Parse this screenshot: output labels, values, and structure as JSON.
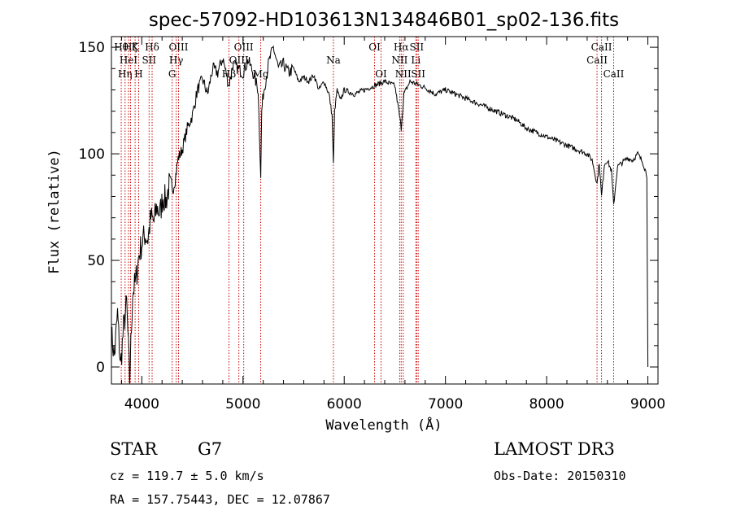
{
  "chart_data": {
    "type": "line",
    "title": "spec-57092-HD103613N134846B01_sp02-136.fits",
    "xlabel": "Wavelength (Å)",
    "ylabel": "Flux (relative)",
    "xlim": [
      3700,
      9100
    ],
    "ylim": [
      -8,
      155
    ],
    "x_ticks": [
      4000,
      5000,
      6000,
      7000,
      8000,
      9000
    ],
    "y_ticks": [
      0,
      50,
      100,
      150
    ],
    "grid": false,
    "series": [
      {
        "x": [
          3700,
          3730,
          3760,
          3790,
          3820,
          3850,
          3880,
          3910,
          3940,
          3970,
          4000,
          4030,
          4060,
          4090,
          4120,
          4150,
          4180,
          4210,
          4240,
          4270,
          4300,
          4330,
          4360,
          4400,
          4450,
          4500,
          4550,
          4600,
          4650,
          4700,
          4750,
          4800,
          4860,
          4900,
          4950,
          5000,
          5050,
          5100,
          5150,
          5175,
          5185,
          5200,
          5250,
          5300,
          5350,
          5400,
          5450,
          5500,
          5550,
          5600,
          5650,
          5700,
          5750,
          5800,
          5850,
          5880,
          5893,
          5905,
          5930,
          5960,
          6000,
          6100,
          6200,
          6300,
          6400,
          6500,
          6540,
          6563,
          6590,
          6650,
          6700,
          6800,
          6900,
          7000,
          7100,
          7200,
          7300,
          7400,
          7500,
          7600,
          7700,
          7800,
          7900,
          8000,
          8100,
          8200,
          8300,
          8400,
          8450,
          8498,
          8520,
          8542,
          8570,
          8600,
          8640,
          8662,
          8700,
          8750,
          8800,
          8850,
          8900,
          8950,
          8990,
          9000
        ],
        "y": [
          15,
          5,
          25,
          0,
          18,
          30,
          -6,
          35,
          40,
          52,
          58,
          62,
          60,
          70,
          68,
          75,
          72,
          80,
          78,
          85,
          82,
          88,
          98,
          102,
          112,
          118,
          130,
          135,
          128,
          140,
          138,
          145,
          132,
          142,
          140,
          138,
          144,
          138,
          130,
          90,
          120,
          128,
          142,
          150,
          140,
          142,
          138,
          140,
          134,
          136,
          134,
          137,
          130,
          134,
          128,
          118,
          95,
          120,
          130,
          125,
          130,
          128,
          130,
          132,
          134,
          132,
          120,
          112,
          128,
          134,
          133,
          131,
          128,
          130,
          128,
          126,
          124,
          122,
          120,
          118,
          116,
          112,
          110,
          108,
          106,
          104,
          102,
          100,
          97,
          86,
          96,
          80,
          95,
          97,
          92,
          76,
          94,
          96,
          98,
          97,
          100,
          96,
          90,
          0
        ]
      }
    ],
    "line_markers": [
      {
        "wavelength": 3797,
        "label": "Hθ",
        "row": 1
      },
      {
        "wavelength": 3835,
        "label": "Hη",
        "row": 3
      },
      {
        "wavelength": 3869,
        "label": "HeI",
        "row": 2
      },
      {
        "wavelength": 3889,
        "label": "Hζ",
        "row": 1
      },
      {
        "wavelength": 3934,
        "label": "K",
        "row": 1
      },
      {
        "wavelength": 3969,
        "label": "H",
        "row": 3
      },
      {
        "wavelength": 4072,
        "label": "SII",
        "row": 2
      },
      {
        "wavelength": 4102,
        "label": "Hδ",
        "row": 1
      },
      {
        "wavelength": 4300,
        "label": "G",
        "row": 3
      },
      {
        "wavelength": 4340,
        "label": "Hγ",
        "row": 2
      },
      {
        "wavelength": 4363,
        "label": "OIII",
        "row": 1
      },
      {
        "wavelength": 4861,
        "label": "Hβ",
        "row": 3
      },
      {
        "wavelength": 4959,
        "label": "OIII",
        "row": 2
      },
      {
        "wavelength": 5007,
        "label": "OIII",
        "row": 1
      },
      {
        "wavelength": 5175,
        "label": "Mg",
        "row": 3
      },
      {
        "wavelength": 5893,
        "label": "Na",
        "row": 2
      },
      {
        "wavelength": 6300,
        "label": "OI",
        "row": 1
      },
      {
        "wavelength": 6364,
        "label": "OI",
        "row": 3
      },
      {
        "wavelength": 6548,
        "label": "NII",
        "row": 2
      },
      {
        "wavelength": 6563,
        "label": "Hα",
        "row": 1
      },
      {
        "wavelength": 6583,
        "label": "NII",
        "row": 3
      },
      {
        "wavelength": 6708,
        "label": "Li",
        "row": 2
      },
      {
        "wavelength": 6716,
        "label": "SII",
        "row": 1
      },
      {
        "wavelength": 6731,
        "label": "SII",
        "row": 3
      },
      {
        "wavelength": 8498,
        "label": "CaII",
        "row": 2
      },
      {
        "wavelength": 8542,
        "label": "CaII",
        "row": 1
      },
      {
        "wavelength": 8662,
        "label": "CaII",
        "row": 3
      }
    ],
    "line_marker_color": "#cc0000"
  },
  "info": {
    "class": "STAR",
    "subclass": "G7",
    "survey": "LAMOST DR3",
    "cz": "cz = 119.7 ± 5.0 km/s",
    "obs_date": "Obs-Date: 20150310",
    "coords": "RA = 157.75443, DEC =  12.07867"
  }
}
